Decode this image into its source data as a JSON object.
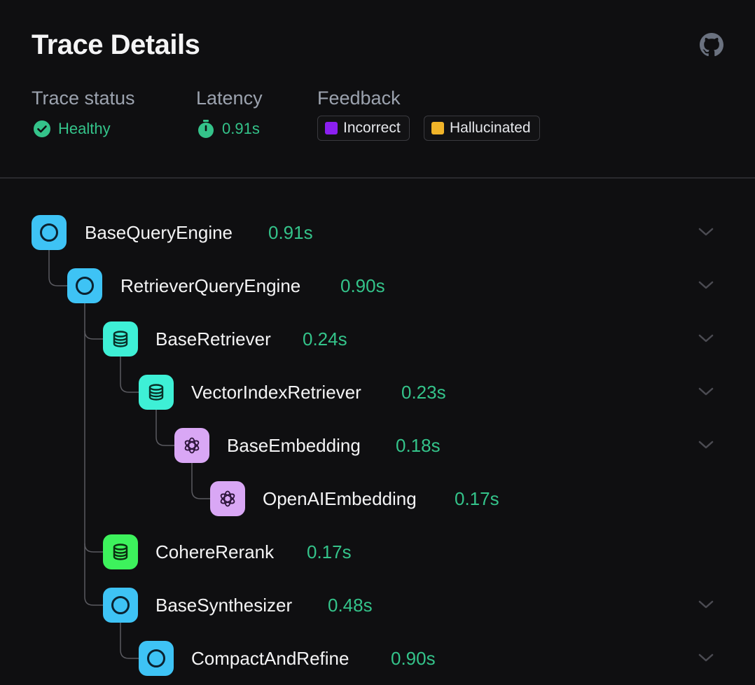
{
  "header": {
    "title": "Trace Details",
    "github_icon": "github-icon"
  },
  "meta": {
    "status_label": "Trace status",
    "status_value": "Healthy",
    "status_icon": "check-circle-icon",
    "latency_label": "Latency",
    "latency_value": "0.91s",
    "latency_icon": "stopwatch-icon",
    "feedback_label": "Feedback",
    "feedback_tags": [
      {
        "label": "Incorrect",
        "color": "#8b1ff0"
      },
      {
        "label": "Hallucinated",
        "color": "#f0b429"
      }
    ]
  },
  "colors": {
    "accent_green": "#34c38a",
    "query_engine": "#3ec3f5",
    "retriever": "#3ef0d6",
    "embedding": "#d9a7f5",
    "rerank": "#3df25c"
  },
  "tree": [
    {
      "name": "BaseQueryEngine",
      "time": "0.91s",
      "kind": "query-engine",
      "icon": "circle-icon",
      "collapsible": true
    },
    {
      "name": "RetrieverQueryEngine",
      "time": "0.90s",
      "kind": "query-engine",
      "icon": "circle-icon",
      "collapsible": true
    },
    {
      "name": "BaseRetriever",
      "time": "0.24s",
      "kind": "retriever",
      "icon": "database-icon",
      "collapsible": true
    },
    {
      "name": "VectorIndexRetriever",
      "time": "0.23s",
      "kind": "retriever",
      "icon": "database-icon",
      "collapsible": true
    },
    {
      "name": "BaseEmbedding",
      "time": "0.18s",
      "kind": "embedding",
      "icon": "openai-icon",
      "collapsible": true
    },
    {
      "name": "OpenAIEmbedding",
      "time": "0.17s",
      "kind": "embedding",
      "icon": "openai-icon",
      "collapsible": false
    },
    {
      "name": "CohereRerank",
      "time": "0.17s",
      "kind": "rerank",
      "icon": "database-icon",
      "collapsible": false
    },
    {
      "name": "BaseSynthesizer",
      "time": "0.48s",
      "kind": "query-engine",
      "icon": "circle-icon",
      "collapsible": true
    },
    {
      "name": "CompactAndRefine",
      "time": "0.90s",
      "kind": "query-engine",
      "icon": "circle-icon",
      "collapsible": true
    }
  ]
}
